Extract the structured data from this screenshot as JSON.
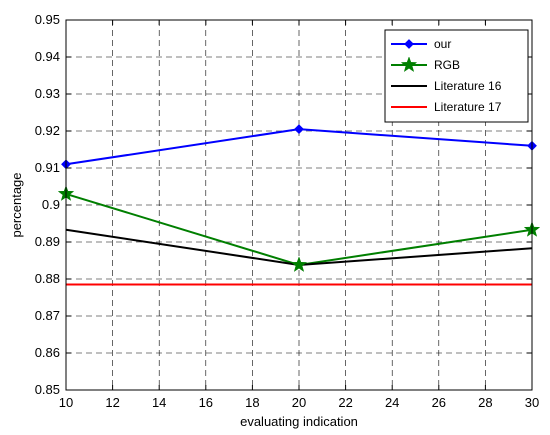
{
  "chart_data": {
    "type": "line",
    "title": "",
    "xlabel": "evaluating indication",
    "ylabel": "percentage",
    "xlim": [
      10,
      30
    ],
    "ylim": [
      0.85,
      0.95
    ],
    "xticks": [
      10,
      12,
      14,
      16,
      18,
      20,
      22,
      24,
      26,
      28,
      30
    ],
    "yticks": [
      0.85,
      0.86,
      0.87,
      0.88,
      0.89,
      0.9,
      0.91,
      0.92,
      0.93,
      0.94,
      0.95
    ],
    "xtick_labels": [
      "10",
      "12",
      "14",
      "16",
      "18",
      "20",
      "22",
      "24",
      "26",
      "28",
      "30"
    ],
    "ytick_labels": [
      "0.85",
      "0.86",
      "0.87",
      "0.88",
      "0.89",
      "0.9",
      "0.91",
      "0.92",
      "0.93",
      "0.94",
      "0.95"
    ],
    "grid": true,
    "legend_position": "top-right",
    "series": [
      {
        "name": "our",
        "color": "#0000ff",
        "marker": "diamond",
        "x": [
          10,
          20,
          30
        ],
        "y": [
          0.911,
          0.9205,
          0.916
        ]
      },
      {
        "name": "RGB",
        "color": "#007f00",
        "marker": "star",
        "x": [
          10,
          20,
          30
        ],
        "y": [
          0.903,
          0.8838,
          0.8933
        ]
      },
      {
        "name": "Literature 16",
        "color": "#000000",
        "marker": "none",
        "x": [
          10,
          20,
          30
        ],
        "y": [
          0.8933,
          0.8838,
          0.8883
        ]
      },
      {
        "name": "Literature 17",
        "color": "#ff0000",
        "marker": "none",
        "x": [
          10,
          20,
          30
        ],
        "y": [
          0.8785,
          0.8785,
          0.8785
        ]
      }
    ]
  }
}
